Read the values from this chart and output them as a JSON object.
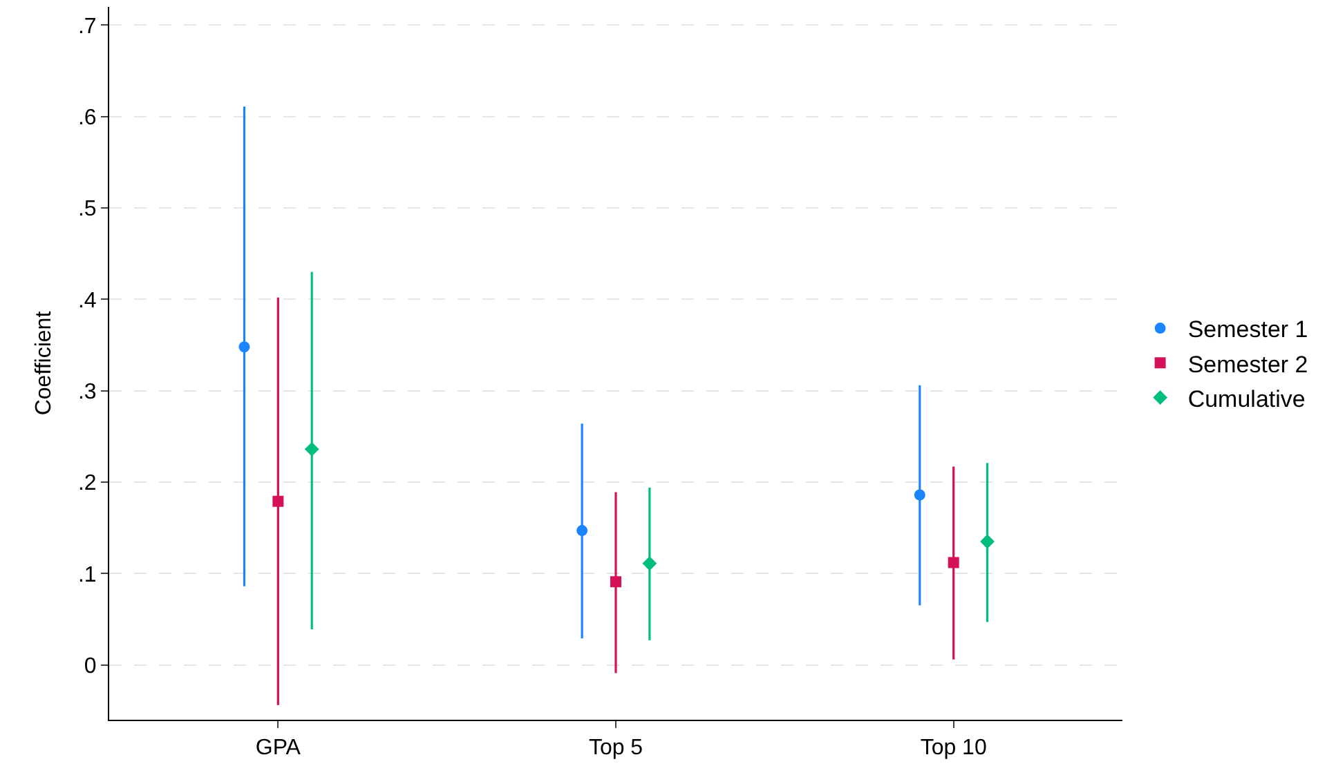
{
  "chart_data": {
    "type": "scatter",
    "ylabel": "Coefficient",
    "categories": [
      "GPA",
      "Top 5",
      "Top 10"
    ],
    "series": [
      {
        "name": "Semester 1",
        "color": "#1a85ff",
        "marker": "circle",
        "values": [
          0.348,
          0.147,
          0.186
        ],
        "errors": [
          [
            0.086,
            0.611
          ],
          [
            0.029,
            0.264
          ],
          [
            0.065,
            0.306
          ]
        ]
      },
      {
        "name": "Semester 2",
        "color": "#d41159",
        "marker": "square",
        "values": [
          0.179,
          0.091,
          0.112
        ],
        "errors": [
          [
            -0.044,
            0.402
          ],
          [
            -0.009,
            0.189
          ],
          [
            0.006,
            0.217
          ]
        ]
      },
      {
        "name": "Cumulative",
        "color": "#00bf7d",
        "marker": "diamond",
        "values": [
          0.236,
          0.111,
          0.135
        ],
        "errors": [
          [
            0.039,
            0.43
          ],
          [
            0.027,
            0.194
          ],
          [
            0.047,
            0.221
          ]
        ]
      }
    ],
    "ylim": [
      -0.06,
      0.72
    ],
    "yticks": [
      {
        "value": 0,
        "label": "0"
      },
      {
        "value": 0.1,
        "label": ".1"
      },
      {
        "value": 0.2,
        "label": ".2"
      },
      {
        "value": 0.3,
        "label": ".3"
      },
      {
        "value": 0.4,
        "label": ".4"
      },
      {
        "value": 0.5,
        "label": ".5"
      },
      {
        "value": 0.6,
        "label": ".6"
      },
      {
        "value": 0.7,
        "label": ".7"
      }
    ],
    "grid": "y",
    "legend": "right"
  }
}
